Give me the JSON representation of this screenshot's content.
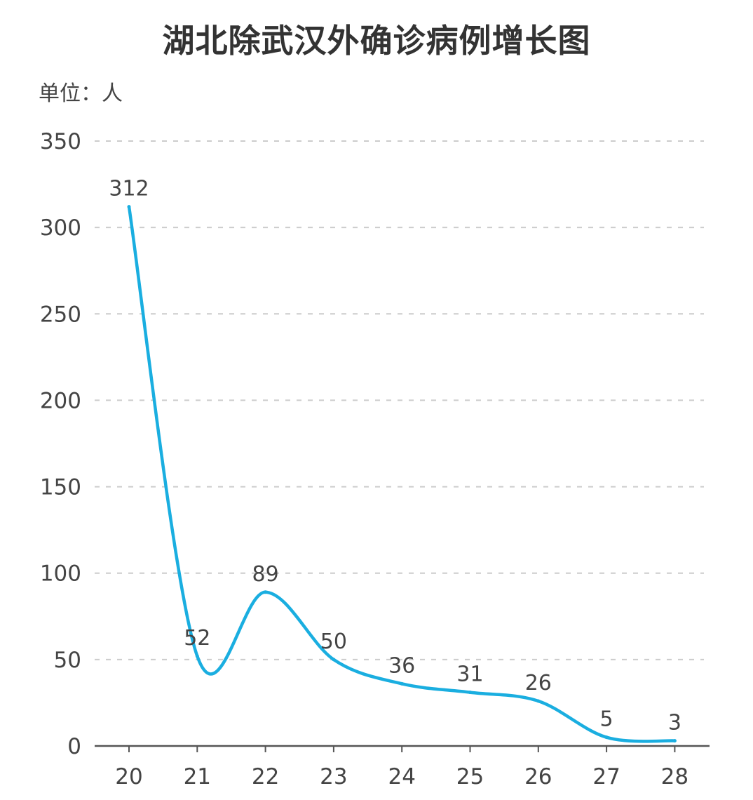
{
  "chart_data": {
    "type": "line",
    "title": "湖北除武汉外确诊病例增长图",
    "unit_label": "单位：人",
    "xlabel": "",
    "ylabel": "",
    "categories": [
      "20",
      "21",
      "22",
      "23",
      "24",
      "25",
      "26",
      "27",
      "28"
    ],
    "series": [
      {
        "values": [
          312,
          52,
          89,
          50,
          36,
          31,
          26,
          5,
          3
        ],
        "color": "#1aaee0"
      }
    ],
    "ylim": [
      0,
      350
    ],
    "yticks": [
      0,
      50,
      100,
      150,
      200,
      250,
      300,
      350
    ],
    "grid": true,
    "grid_style": "dashed",
    "data_labels": true,
    "colors": {
      "line": "#1aaee0",
      "grid": "#cccccc",
      "axis": "#555555",
      "text": "#444444"
    }
  }
}
